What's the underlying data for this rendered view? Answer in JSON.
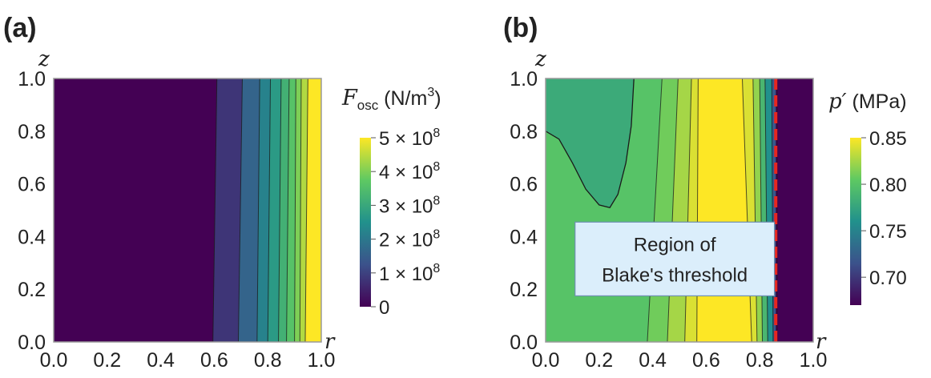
{
  "figure": {
    "colormap": [
      "#440154",
      "#3b528b",
      "#21918c",
      "#5ec962",
      "#fde725"
    ],
    "boundary_dash_color": "#e8261f",
    "contour_color": "#1a1a1a",
    "frame_color": "#9a9a9a"
  },
  "chart_data": [
    {
      "type": "heatmap",
      "panel_label": "(a)",
      "xlabel": "r",
      "ylabel": "z",
      "xlim": [
        0,
        1
      ],
      "ylim": [
        0,
        1
      ],
      "xticks": [
        "0.0",
        "0.2",
        "0.4",
        "0.6",
        "0.8",
        "1.0"
      ],
      "yticks": [
        "0.0",
        "0.2",
        "0.4",
        "0.6",
        "0.8",
        "1.0"
      ],
      "colorbar": {
        "label_main": "F",
        "label_sub": "osc",
        "label_unit": " (N/m",
        "label_unit_sup": "3",
        "label_close": ")",
        "range": [
          0,
          500000000
        ],
        "ticks": [
          {
            "value": 0,
            "mantissa": "0",
            "exp": ""
          },
          {
            "value": 100000000,
            "mantissa": "1 × 10",
            "exp": "8"
          },
          {
            "value": 200000000,
            "mantissa": "2 × 10",
            "exp": "8"
          },
          {
            "value": 300000000,
            "mantissa": "3 × 10",
            "exp": "8"
          },
          {
            "value": 400000000,
            "mantissa": "4 × 10",
            "exp": "8"
          },
          {
            "value": 500000000,
            "mantissa": "5 × 10",
            "exp": "8"
          }
        ]
      },
      "bands": [
        {
          "r_bottom": 0.0,
          "r_top": 0.0,
          "value": 0
        },
        {
          "r_bottom": 0.595,
          "r_top": 0.61,
          "value": 80000000
        },
        {
          "r_bottom": 0.69,
          "r_top": 0.705,
          "value": 160000000
        },
        {
          "r_bottom": 0.76,
          "r_top": 0.77,
          "value": 220000000
        },
        {
          "r_bottom": 0.8,
          "r_top": 0.81,
          "value": 270000000
        },
        {
          "r_bottom": 0.84,
          "r_top": 0.85,
          "value": 320000000
        },
        {
          "r_bottom": 0.87,
          "r_top": 0.88,
          "value": 360000000
        },
        {
          "r_bottom": 0.9,
          "r_top": 0.905,
          "value": 400000000
        },
        {
          "r_bottom": 0.92,
          "r_top": 0.925,
          "value": 440000000
        },
        {
          "r_bottom": 0.94,
          "r_top": 0.95,
          "value": 500000000
        }
      ]
    },
    {
      "type": "heatmap",
      "panel_label": "(b)",
      "xlabel": "r",
      "ylabel": "z",
      "xlim": [
        0,
        1
      ],
      "ylim": [
        0,
        1
      ],
      "xticks": [
        "0.0",
        "0.2",
        "0.4",
        "0.6",
        "0.8",
        "1.0"
      ],
      "yticks": [
        "0.0",
        "0.2",
        "0.4",
        "0.6",
        "0.8",
        "1.0"
      ],
      "colorbar": {
        "label_main": "p′",
        "label_unit": " (MPa)",
        "range": [
          0.67,
          0.85
        ],
        "ticks": [
          {
            "value": 0.7,
            "text": "0.70"
          },
          {
            "value": 0.75,
            "text": "0.75"
          },
          {
            "value": 0.8,
            "text": "0.80"
          },
          {
            "value": 0.85,
            "text": "0.85"
          }
        ]
      },
      "left_region_value": 0.8,
      "dip_contour": [
        [
          0.0,
          0.8
        ],
        [
          0.05,
          0.77
        ],
        [
          0.1,
          0.68
        ],
        [
          0.15,
          0.58
        ],
        [
          0.2,
          0.52
        ],
        [
          0.24,
          0.51
        ],
        [
          0.27,
          0.56
        ],
        [
          0.3,
          0.68
        ],
        [
          0.32,
          0.82
        ],
        [
          0.33,
          1.0
        ]
      ],
      "bands": [
        {
          "r_bottom": 0.38,
          "r_top": 0.435,
          "value": 0.81
        },
        {
          "r_bottom": 0.455,
          "r_top": 0.495,
          "value": 0.825
        },
        {
          "r_bottom": 0.52,
          "r_top": 0.545,
          "value": 0.84
        },
        {
          "r_bottom": 0.565,
          "r_top": 0.57,
          "value": 0.85
        },
        {
          "r_bottom": 0.77,
          "r_top": 0.735,
          "value": 0.84
        },
        {
          "r_bottom": 0.79,
          "r_top": 0.775,
          "value": 0.82
        },
        {
          "r_bottom": 0.81,
          "r_top": 0.8,
          "value": 0.79
        },
        {
          "r_bottom": 0.83,
          "r_top": 0.82,
          "value": 0.76
        },
        {
          "r_bottom": 0.85,
          "r_top": 0.845,
          "value": 0.72
        },
        {
          "r_bottom": 0.865,
          "r_top": 0.865,
          "value": 0.675
        }
      ],
      "threshold_r": 0.86,
      "annotation": {
        "line1": "Region of",
        "line2": "Blake's threshold",
        "r_left": 0.11,
        "r_right": 0.855,
        "z_top": 0.455,
        "z_bottom": 0.175
      }
    }
  ]
}
